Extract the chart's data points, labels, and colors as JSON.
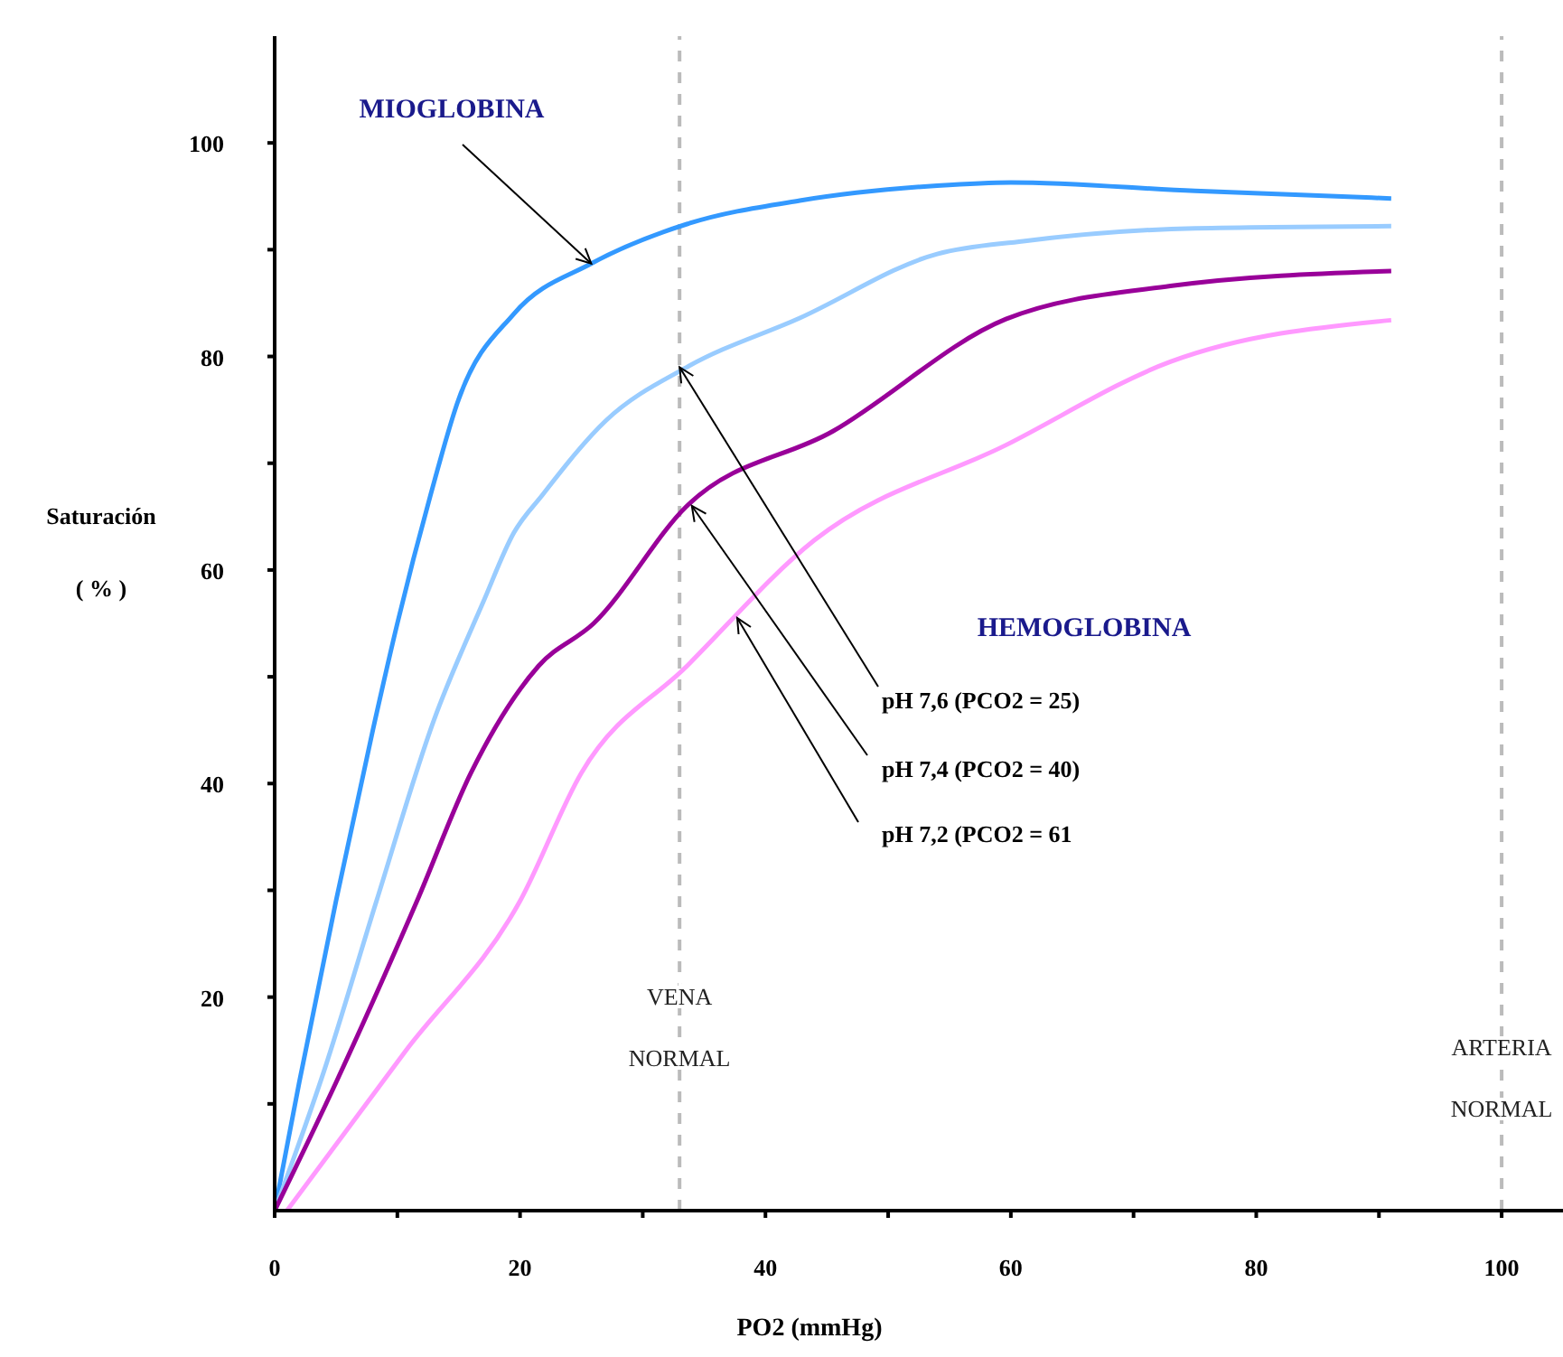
{
  "chart_data": {
    "type": "line",
    "xlabel": "PO2 (mmHg)",
    "ylabel": "Saturación ( % )",
    "xlim": [
      0,
      105
    ],
    "ylim": [
      0,
      110
    ],
    "xticks": [
      0,
      {
        "value": 10,
        "label": null
      },
      20,
      {
        "value": 30,
        "label": null
      },
      40,
      {
        "value": 50,
        "label": null
      },
      60,
      {
        "value": 70,
        "label": null
      },
      80,
      {
        "value": 90,
        "label": null
      },
      100
    ],
    "yticks": [
      {
        "value": 10,
        "label": null
      },
      20,
      {
        "value": 30,
        "label": null
      },
      40,
      {
        "value": 50,
        "label": null
      },
      60,
      {
        "value": 70,
        "label": null
      },
      80,
      {
        "value": 90,
        "label": null
      },
      100
    ],
    "series": [
      {
        "color": "#3399ff",
        "x": [
          0,
          2,
          5,
          8,
          10,
          12.7,
          15,
          19.5,
          25.8,
          33.6,
          42.8,
          54,
          60,
          75,
          91
        ],
        "values": [
          0,
          12,
          29,
          45,
          55,
          67,
          76,
          84,
          88.7,
          92.4,
          94.6,
          96,
          96.3,
          95.5,
          94.8
        ]
      },
      {
        "color": "#99ccff",
        "x": [
          0,
          4,
          8.3,
          13,
          17,
          19.5,
          21.8,
          27,
          33.6,
          42.8,
          54,
          61,
          75,
          91
        ],
        "values": [
          0,
          13,
          29,
          46,
          57,
          63.5,
          67,
          74,
          79,
          83.6,
          89.6,
          90.8,
          92,
          92.2
        ]
      },
      {
        "color": "#990099",
        "x": [
          0,
          5,
          11.6,
          16,
          21.5,
          26,
          33.6,
          45.5,
          59.6,
          73,
          91
        ],
        "values": [
          0,
          12,
          29,
          41,
          51,
          55,
          66,
          73,
          83.5,
          86.6,
          88
        ]
      },
      {
        "color": "#ff99ff",
        "x": [
          1,
          10.7,
          20,
          25,
          33.6,
          44,
          59.6,
          73,
          91
        ],
        "values": [
          0,
          15,
          29,
          41,
          51,
          62.8,
          71.7,
          79.5,
          83.4
        ]
      }
    ],
    "ref_lines": [
      {
        "axis": "x",
        "value": 33,
        "label": "VENA NORMAL",
        "color": "#bbbbbb",
        "line_style": "dashed"
      },
      {
        "axis": "x",
        "value": 100,
        "label": "ARTERIA NORMAL",
        "color": "#bbbbbb",
        "line_style": "dashed"
      }
    ],
    "annotations": [
      {
        "text": "MIOGLOBINA",
        "x": 25.8,
        "y": 88.7
      },
      "HEMOGLOBINA",
      {
        "text": "pH 7,6 (PCO2 = 25)",
        "x": 33,
        "y": 79
      },
      {
        "text": "pH 7,4 (PCO2 = 40)",
        "x": 34,
        "y": 66
      },
      {
        "text": "pH 7,2 (PCO2 = 61",
        "x": 37.7,
        "y": 55.5
      }
    ]
  }
}
